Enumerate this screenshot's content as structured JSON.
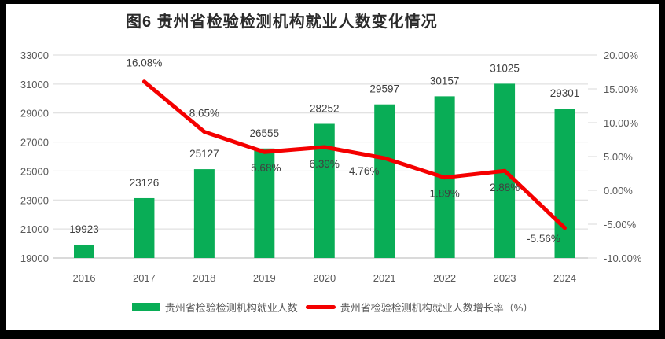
{
  "header": {
    "title": "图6  贵州省检验检测机构就业人数变化情况"
  },
  "legend": {
    "items": [
      {
        "label": "贵州省检验检测机构就业人数",
        "swatch": "bar-swatch",
        "color": "#09AD56"
      },
      {
        "label": "贵州省检验检测机构就业人数增长率（%）",
        "swatch": "line-swatch",
        "color": "#F40000"
      }
    ]
  },
  "colors": {
    "bar_green": "#09AD56",
    "line_red": "#F40000",
    "gridline": "#D9D9D9",
    "axis_line": "#C3C3C3",
    "axis_text": "#595959",
    "data_label_text": "#404040",
    "title_text": "#2B2B2B",
    "frame": "#000000",
    "background": "#FFFFFF"
  },
  "chart_data": {
    "type": "bar",
    "combo_with_line": true,
    "title": "图6  贵州省检验检测机构就业人数变化情况",
    "categories": [
      "2016",
      "2017",
      "2018",
      "2019",
      "2020",
      "2021",
      "2022",
      "2023",
      "2024"
    ],
    "series": [
      {
        "name": "贵州省检验检测机构就业人数",
        "type": "bar",
        "axis": "left",
        "color": "#09AD56",
        "values": [
          19923,
          23126,
          25127,
          26555,
          28252,
          29597,
          30157,
          31025,
          29301
        ],
        "data_labels": [
          "19923",
          "23126",
          "25127",
          "26555",
          "28252",
          "29597",
          "30157",
          "31025",
          "29301"
        ]
      },
      {
        "name": "贵州省检验检测机构就业人数增长率（%）",
        "type": "line",
        "axis": "right",
        "color": "#F40000",
        "values": [
          null,
          16.08,
          8.65,
          5.68,
          6.39,
          4.76,
          1.89,
          2.88,
          -5.56
        ],
        "data_labels": [
          null,
          "16.08%",
          "8.65%",
          "5.68%",
          "6.39%",
          "4.76%",
          "1.89%",
          "2.88%",
          "-5.56%"
        ],
        "label_offsets": [
          null,
          [
            0,
            -24
          ],
          [
            0,
            -24
          ],
          [
            2,
            20
          ],
          [
            0,
            21
          ],
          [
            -26,
            16
          ],
          [
            0,
            20
          ],
          [
            0,
            21
          ],
          [
            -27,
            13
          ]
        ]
      }
    ],
    "left_axis": {
      "min": 19000,
      "max": 33000,
      "step": 2000,
      "tick_labels": [
        "19000",
        "21000",
        "23000",
        "25000",
        "27000",
        "29000",
        "31000",
        "33000"
      ]
    },
    "right_axis": {
      "min": -10,
      "max": 20,
      "step": 5,
      "tick_labels": [
        "-10.00%",
        "-5.00%",
        "0.00%",
        "5.00%",
        "10.00%",
        "15.00%",
        "20.00%"
      ]
    },
    "grid": true,
    "legend_position": "bottom"
  }
}
